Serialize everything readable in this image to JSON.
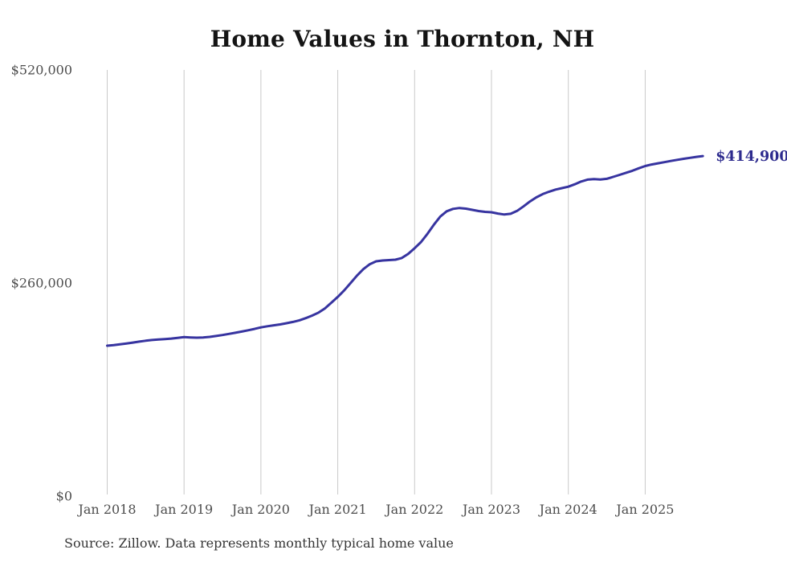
{
  "chart": {
    "title": "Home Values in Thornton, NH",
    "end_label": "$414,900",
    "source_note": "Source: Zillow. Data represents monthly typical home value",
    "colors": {
      "line": "#3734a0",
      "end_label": "#2d2b8e",
      "gridline": "#c9c9c9",
      "axis_label": "#4d4d4d",
      "title": "#141414",
      "source": "#363636",
      "background": "#ffffff"
    }
  },
  "chart_data": {
    "type": "line",
    "title": "Home Values in Thornton, NH",
    "ylabel": "",
    "xlabel": "",
    "ylim": [
      0,
      520000
    ],
    "grid": "vertical-only",
    "legend": "none",
    "unit": "USD",
    "frequency": "monthly",
    "x_start_month": "2018-01",
    "x_end_month": "2025-10",
    "x_tick_labels": [
      "Jan 2018",
      "Jan 2019",
      "Jan 2020",
      "Jan 2021",
      "Jan 2022",
      "Jan 2023",
      "Jan 2024",
      "Jan 2025"
    ],
    "y_ticks": [
      {
        "label": "$0",
        "value": 0
      },
      {
        "label": "$260,000",
        "value": 260000
      },
      {
        "label": "$520,000",
        "value": 520000
      }
    ],
    "last_value": 414900,
    "last_value_label": "$414,900",
    "values_by_year": {
      "2018": [
        183500,
        184300,
        185200,
        186200,
        187300,
        188500,
        189600,
        190400,
        191100,
        191600,
        192200,
        193100
      ],
      "2019": [
        194000,
        193600,
        193300,
        193600,
        194300,
        195300,
        196500,
        197900,
        199300,
        200700,
        202300,
        204000
      ],
      "2020": [
        205800,
        207200,
        208400,
        209500,
        210900,
        212500,
        214500,
        217100,
        220300,
        223900,
        229000,
        236000
      ],
      "2021": [
        243000,
        251000,
        260000,
        269000,
        277000,
        283000,
        286500,
        287500,
        288000,
        288500,
        290500,
        295500
      ],
      "2022": [
        302500,
        310000,
        320000,
        331000,
        341000,
        347500,
        350500,
        351500,
        350800,
        349300,
        347800,
        346800
      ],
      "2023": [
        346300,
        344800,
        343600,
        344500,
        348000,
        353500,
        359500,
        364500,
        368500,
        371500,
        374000,
        375800
      ],
      "2024": [
        377500,
        380500,
        383800,
        386200,
        386800,
        386300,
        387200,
        389500,
        392000,
        394500,
        397000,
        400000
      ],
      "2025": [
        402800,
        404600,
        406100,
        407500,
        408900,
        410300,
        411600,
        412800,
        413900,
        414900
      ]
    }
  }
}
